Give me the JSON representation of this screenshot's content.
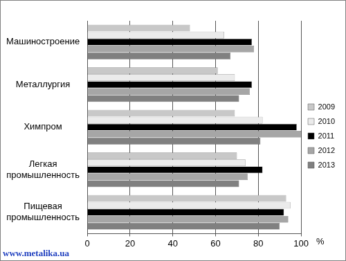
{
  "chart_data": {
    "type": "bar",
    "orientation": "horizontal",
    "categories": [
      "Машиностроение",
      "Металлургия",
      "Химпром",
      "Легкая промышленность",
      "Пищевая промышленность"
    ],
    "series": [
      {
        "name": "2009",
        "color": "#c8c8c8",
        "values": [
          48,
          61,
          69,
          70,
          93
        ]
      },
      {
        "name": "2010",
        "color": "#ebebeb",
        "values": [
          64,
          69,
          82,
          74,
          95
        ]
      },
      {
        "name": "2011",
        "color": "#000000",
        "values": [
          77,
          77,
          98,
          82,
          92
        ]
      },
      {
        "name": "2012",
        "color": "#a6a6a6",
        "values": [
          78,
          76,
          100,
          75,
          94
        ]
      },
      {
        "name": "2013",
        "color": "#808080",
        "values": [
          67,
          71,
          81,
          71,
          90
        ]
      }
    ],
    "x_label": "%",
    "xlim": [
      0,
      100
    ],
    "xticks": [
      0,
      20,
      40,
      60,
      80,
      100
    ],
    "grid": true,
    "legend": "right",
    "data_labels": false,
    "annotation": "www.metalika.ua"
  }
}
